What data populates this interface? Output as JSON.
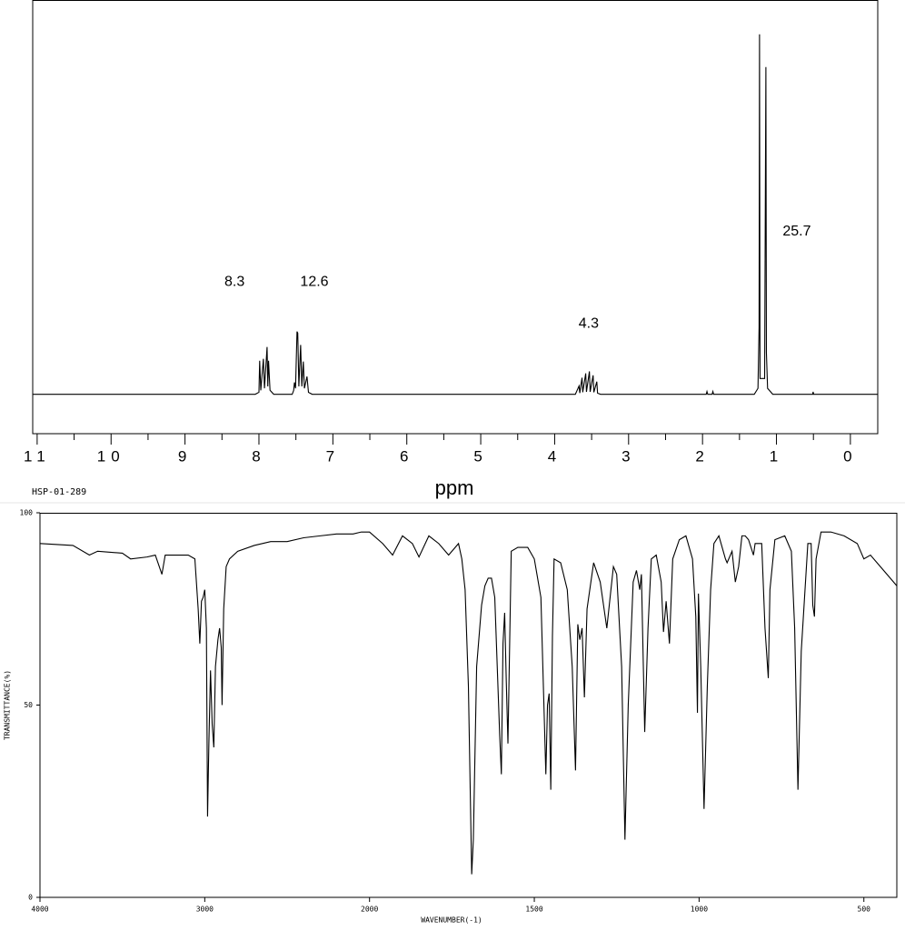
{
  "caption": "HSP-01-289",
  "chart_data": [
    {
      "type": "line",
      "xlabel": "ppm",
      "color": "#000000",
      "xlim": [
        11.06,
        -0.37
      ],
      "ylim": [
        -10,
        100
      ],
      "xticks": [
        11,
        10,
        9,
        8,
        7,
        6,
        5,
        4,
        3,
        2,
        1,
        0
      ],
      "xminorticks": [
        10.5,
        9.5,
        8.5,
        7.5,
        6.5,
        5.5,
        4.5,
        3.5,
        2.5,
        1.5,
        0.5
      ],
      "annotations": [
        {
          "text": "8.3",
          "x": 8.33,
          "y": 28.4
        },
        {
          "text": "12.6",
          "x": 7.25,
          "y": 28.4
        },
        {
          "text": "4.3",
          "x": 3.54,
          "y": 17.8
        },
        {
          "text": "25.7",
          "x": 0.725,
          "y": 41.3
        }
      ],
      "x": [
        11.06,
        8.05,
        8.0,
        7.99,
        7.975,
        7.94,
        7.925,
        7.89,
        7.88,
        7.87,
        7.85,
        7.8,
        7.55,
        7.53,
        7.52,
        7.505,
        7.485,
        7.475,
        7.46,
        7.436,
        7.42,
        7.4,
        7.385,
        7.35,
        7.33,
        7.28,
        3.72,
        3.67,
        3.66,
        3.63,
        3.62,
        3.58,
        3.57,
        3.53,
        3.52,
        3.48,
        3.47,
        3.43,
        3.42,
        3.38,
        1.95,
        1.94,
        1.93,
        1.87,
        1.86,
        1.85,
        1.3,
        1.25,
        1.235,
        1.229,
        1.222,
        1.16,
        1.143,
        1.136,
        1.12,
        1.05,
        0.51,
        0.504,
        0.497,
        -0.37
      ],
      "values": [
        0,
        0,
        0.5,
        8.5,
        1,
        9,
        1.5,
        12,
        2,
        8.5,
        1,
        0,
        0,
        1,
        3,
        1.5,
        15.9,
        15.5,
        2,
        12.5,
        2,
        8.3,
        1.5,
        4.5,
        0.5,
        0,
        0,
        2.1,
        0.3,
        4.2,
        0.5,
        5.3,
        0.6,
        5.8,
        0.6,
        4.8,
        0.5,
        3.2,
        0.3,
        0,
        0,
        0.7,
        0,
        0,
        0.7,
        0,
        0,
        1.5,
        17,
        91.3,
        4,
        4,
        83,
        10.6,
        1.5,
        0,
        0,
        0.6,
        0,
        0
      ]
    },
    {
      "type": "line",
      "xlabel": "WAVENUMBER(-1)",
      "ylabel": "TRANSMITTANCE(%)",
      "color": "#000000",
      "xlim": [
        4000,
        400
      ],
      "x_break": 2000,
      "x_break_factor": 2,
      "ylim": [
        0,
        100
      ],
      "xticks": [
        4000,
        3000,
        2000,
        1500,
        1000,
        500
      ],
      "yticks": [
        0,
        50,
        100
      ],
      "x": [
        4000,
        3800,
        3700,
        3650,
        3500,
        3450,
        3350,
        3300,
        3260,
        3240,
        3100,
        3060,
        3040,
        3030,
        3020,
        3010,
        3000,
        2990,
        2983,
        2975,
        2965,
        2955,
        2945,
        2935,
        2920,
        2910,
        2900,
        2895,
        2885,
        2870,
        2850,
        2800,
        2700,
        2600,
        2500,
        2400,
        2300,
        2200,
        2100,
        2050,
        2000,
        1960,
        1930,
        1900,
        1870,
        1850,
        1820,
        1790,
        1760,
        1730,
        1720,
        1710,
        1700,
        1690,
        1685,
        1675,
        1660,
        1650,
        1640,
        1630,
        1620,
        1605,
        1600,
        1595,
        1590,
        1585,
        1580,
        1570,
        1550,
        1520,
        1500,
        1480,
        1465,
        1460,
        1455,
        1450,
        1445,
        1440,
        1420,
        1400,
        1385,
        1375,
        1368,
        1362,
        1355,
        1348,
        1340,
        1320,
        1300,
        1280,
        1260,
        1250,
        1235,
        1225,
        1215,
        1200,
        1190,
        1180,
        1175,
        1165,
        1155,
        1145,
        1130,
        1115,
        1108,
        1100,
        1090,
        1080,
        1060,
        1040,
        1020,
        1010,
        1005,
        1002,
        995,
        985,
        975,
        965,
        955,
        940,
        920,
        915,
        900,
        890,
        880,
        870,
        860,
        850,
        835,
        830,
        810,
        800,
        790,
        785,
        770,
        740,
        720,
        710,
        700,
        690,
        680,
        670,
        660,
        655,
        650,
        645,
        630,
        600,
        560,
        520,
        500,
        480,
        460,
        420,
        400
      ],
      "values": [
        92,
        91.5,
        89,
        90,
        89.5,
        88,
        88.5,
        89,
        84,
        89,
        89,
        88,
        75,
        66,
        77,
        78,
        80,
        70,
        21,
        40,
        59,
        45,
        39,
        60,
        67,
        70,
        65,
        50,
        75,
        86,
        88,
        90,
        91.5,
        92.5,
        92.5,
        93.5,
        94,
        94.5,
        94.5,
        95,
        95,
        92,
        89,
        94,
        92,
        88.5,
        94,
        92,
        89,
        92,
        88,
        80,
        55,
        6,
        15,
        60,
        76,
        81,
        83,
        83,
        78,
        42,
        32,
        66,
        74,
        56,
        40,
        90,
        91,
        91,
        88,
        78,
        32,
        50,
        53,
        28,
        68,
        88,
        87,
        80,
        60,
        33,
        71,
        67,
        70,
        52,
        75,
        87,
        82,
        70,
        86,
        84,
        60,
        15,
        50,
        82,
        85,
        80,
        84,
        43,
        70,
        88,
        89,
        82,
        69,
        77,
        66,
        88,
        93,
        94,
        88,
        73,
        48,
        79,
        60,
        23,
        55,
        80,
        92,
        94,
        88,
        87,
        90,
        82,
        86,
        94,
        94,
        93,
        89,
        92,
        92,
        70,
        57,
        80,
        93,
        94,
        90,
        70,
        28,
        64,
        78,
        92,
        92,
        76,
        73,
        88,
        95,
        95,
        94,
        92,
        88,
        89,
        87,
        83,
        81
      ]
    }
  ]
}
